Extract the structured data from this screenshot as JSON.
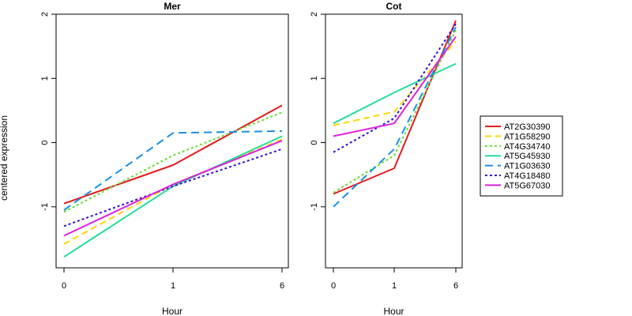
{
  "chart_data": [
    {
      "type": "line",
      "title": "Mer",
      "xlabel": "Hour",
      "ylabel": "centered expression",
      "categories": [
        "0",
        "1",
        "6"
      ],
      "yticks": [
        "-1",
        "0",
        "1",
        "2"
      ],
      "ylim": [
        -1.95,
        2.0
      ],
      "series": [
        {
          "name": "AT2G30390",
          "values": [
            -0.95,
            -0.35,
            0.58
          ]
        },
        {
          "name": "AT1G58290",
          "values": [
            -1.58,
            -0.65,
            0.05
          ]
        },
        {
          "name": "AT4G34740",
          "values": [
            -1.08,
            -0.2,
            0.47
          ]
        },
        {
          "name": "AT5G45930",
          "values": [
            -1.78,
            -0.68,
            0.1
          ]
        },
        {
          "name": "AT1G03630",
          "values": [
            -1.05,
            0.15,
            0.18
          ]
        },
        {
          "name": "AT4G18480",
          "values": [
            -1.3,
            -0.68,
            -0.1
          ]
        },
        {
          "name": "AT5G67030",
          "values": [
            -1.45,
            -0.65,
            0.03
          ]
        }
      ]
    },
    {
      "type": "line",
      "title": "Cot",
      "xlabel": "Hour",
      "ylabel": "",
      "categories": [
        "0",
        "1",
        "6"
      ],
      "yticks": [
        "-1",
        "0",
        "1",
        "2"
      ],
      "ylim": [
        -1.95,
        2.0
      ],
      "series": [
        {
          "name": "AT2G30390",
          "values": [
            -0.8,
            -0.4,
            1.9
          ]
        },
        {
          "name": "AT1G58290",
          "values": [
            0.27,
            0.48,
            1.58
          ]
        },
        {
          "name": "AT4G34740",
          "values": [
            -0.78,
            -0.2,
            1.75
          ]
        },
        {
          "name": "AT5G45930",
          "values": [
            0.3,
            0.78,
            1.23
          ]
        },
        {
          "name": "AT1G03630",
          "values": [
            -1.0,
            -0.1,
            1.8
          ]
        },
        {
          "name": "AT4G18480",
          "values": [
            -0.15,
            0.38,
            1.85
          ]
        },
        {
          "name": "AT5G67030",
          "values": [
            0.1,
            0.3,
            1.65
          ]
        }
      ]
    }
  ],
  "legend": {
    "placement": "right",
    "entries": [
      {
        "name": "AT2G30390",
        "color": "#e41a1c",
        "dash": "solid"
      },
      {
        "name": "AT1G58290",
        "color": "#ffd700",
        "dash": "dashed"
      },
      {
        "name": "AT4G34740",
        "color": "#66dd33",
        "dash": "dotted"
      },
      {
        "name": "AT5G45930",
        "color": "#22dd99",
        "dash": "solid"
      },
      {
        "name": "AT1G03630",
        "color": "#1a8fe3",
        "dash": "longdash"
      },
      {
        "name": "AT4G18480",
        "color": "#3311cc",
        "dash": "dotted"
      },
      {
        "name": "AT5G67030",
        "color": "#dd22dd",
        "dash": "solid"
      }
    ]
  }
}
